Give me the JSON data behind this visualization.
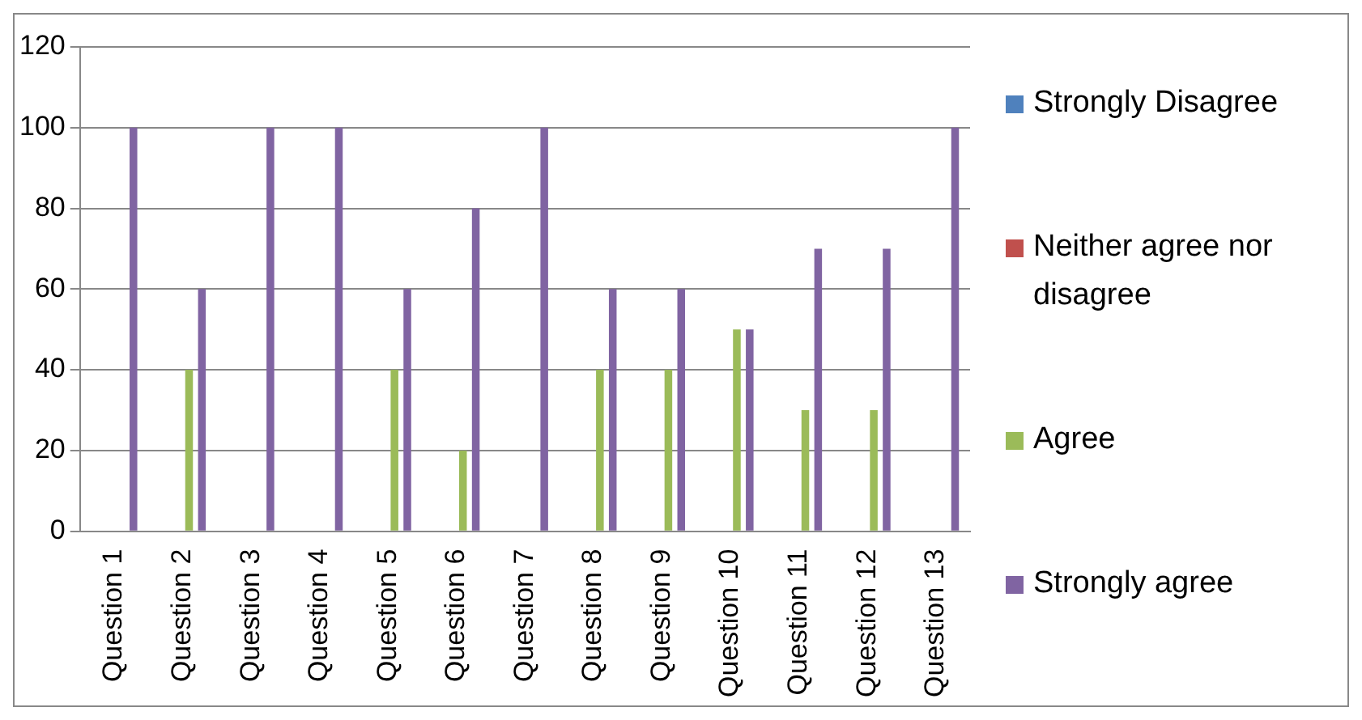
{
  "chart_data": {
    "type": "bar",
    "categories": [
      "Question 1",
      "Question 2",
      "Question 3",
      "Question 4",
      "Question 5",
      "Question 6",
      "Question 7",
      "Question 8",
      "Question 9",
      "Question 10",
      "Question 11",
      "Question 12",
      "Question 13"
    ],
    "series": [
      {
        "name": "Strongly Disagree",
        "color": "#4f81bd",
        "values": [
          0,
          0,
          0,
          0,
          0,
          0,
          0,
          0,
          0,
          0,
          0,
          0,
          0
        ]
      },
      {
        "name": "Neither agree nor disagree",
        "color": "#c0504d",
        "values": [
          0,
          0,
          0,
          0,
          0,
          0,
          0,
          0,
          0,
          0,
          0,
          0,
          0
        ]
      },
      {
        "name": "Agree",
        "color": "#9bbb59",
        "values": [
          0,
          40,
          0,
          0,
          40,
          20,
          0,
          40,
          40,
          50,
          30,
          30,
          0
        ]
      },
      {
        "name": "Strongly agree",
        "color": "#8064a2",
        "values": [
          100,
          60,
          100,
          100,
          60,
          80,
          100,
          60,
          60,
          50,
          70,
          70,
          100
        ]
      }
    ],
    "ylim": [
      0,
      120
    ],
    "yticks": [
      0,
      20,
      40,
      60,
      80,
      100,
      120
    ],
    "grid": "y",
    "legend": "right"
  }
}
